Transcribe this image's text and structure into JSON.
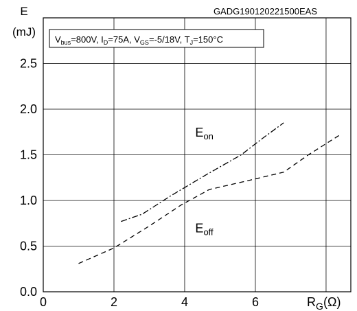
{
  "chart_data": {
    "type": "line",
    "figure_code": "GADG190120221500EAS",
    "ylabel_top": "E",
    "ylabel_unit": "(mJ)",
    "xlabel_main": "R",
    "xlabel_sub": "G",
    "xlabel_unit": "(Ω)",
    "conditions": [
      {
        "text": "V",
        "sub": "bus",
        "suffix": "=800V, "
      },
      {
        "text": "I",
        "sub": "D",
        "suffix": "=75A, "
      },
      {
        "text": "V",
        "sub": "GS",
        "suffix": "=-5/18V, "
      },
      {
        "text": "T",
        "sub": "J",
        "suffix": "=150°C"
      }
    ],
    "xlim": [
      0,
      8.7
    ],
    "ylim": [
      0,
      3.0
    ],
    "x_ticks": [
      0,
      2,
      4,
      6
    ],
    "x_tick_labels": [
      "0",
      "2",
      "4",
      "6"
    ],
    "y_ticks": [
      0.0,
      0.5,
      1.0,
      1.5,
      2.0,
      2.5
    ],
    "y_tick_labels": [
      "0.0",
      "0.5",
      "1.0",
      "1.5",
      "2.0",
      "2.5"
    ],
    "grid": true,
    "series": [
      {
        "name": "E",
        "sub": "on",
        "dash": "dashdot",
        "label_pos": [
          4.3,
          1.7
        ],
        "x": [
          2.2,
          2.8,
          3.6,
          4.6,
          5.6,
          6.2,
          6.8
        ],
        "y": [
          0.77,
          0.85,
          1.05,
          1.28,
          1.5,
          1.68,
          1.85
        ]
      },
      {
        "name": "E",
        "sub": "off",
        "dash": "dashed",
        "label_pos": [
          4.3,
          0.65
        ],
        "x": [
          1.0,
          2.0,
          3.0,
          3.9,
          4.7,
          5.6,
          6.8,
          7.5,
          8.4
        ],
        "y": [
          0.31,
          0.48,
          0.72,
          0.95,
          1.12,
          1.2,
          1.31,
          1.5,
          1.72
        ]
      }
    ]
  }
}
